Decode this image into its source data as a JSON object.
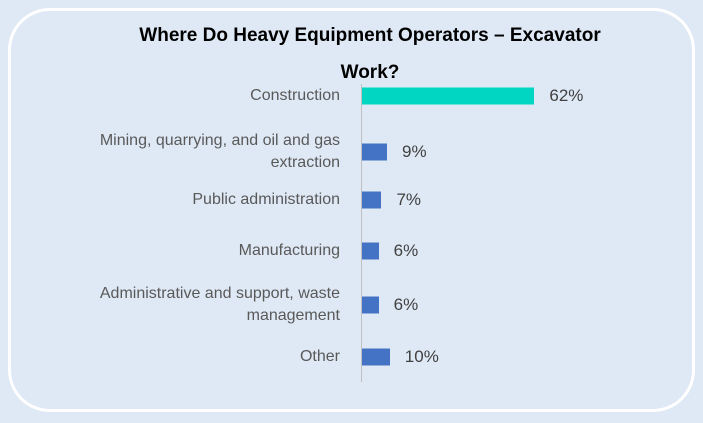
{
  "chart_data": {
    "type": "bar",
    "orientation": "horizontal",
    "title": "Where Do Heavy Equipment Operators – Excavator Work?",
    "categories": [
      "Construction",
      "Mining, quarrying, and oil and gas extraction",
      "Public administration",
      "Manufacturing",
      "Administrative and support, waste management",
      "Other"
    ],
    "values": [
      62,
      9,
      7,
      6,
      6,
      10
    ],
    "value_labels": [
      "62%",
      "9%",
      "7%",
      "6%",
      "6%",
      "10%"
    ],
    "colors": [
      "#00d6c1",
      "#4472c4",
      "#4472c4",
      "#4472c4",
      "#4472c4",
      "#4472c4"
    ]
  }
}
